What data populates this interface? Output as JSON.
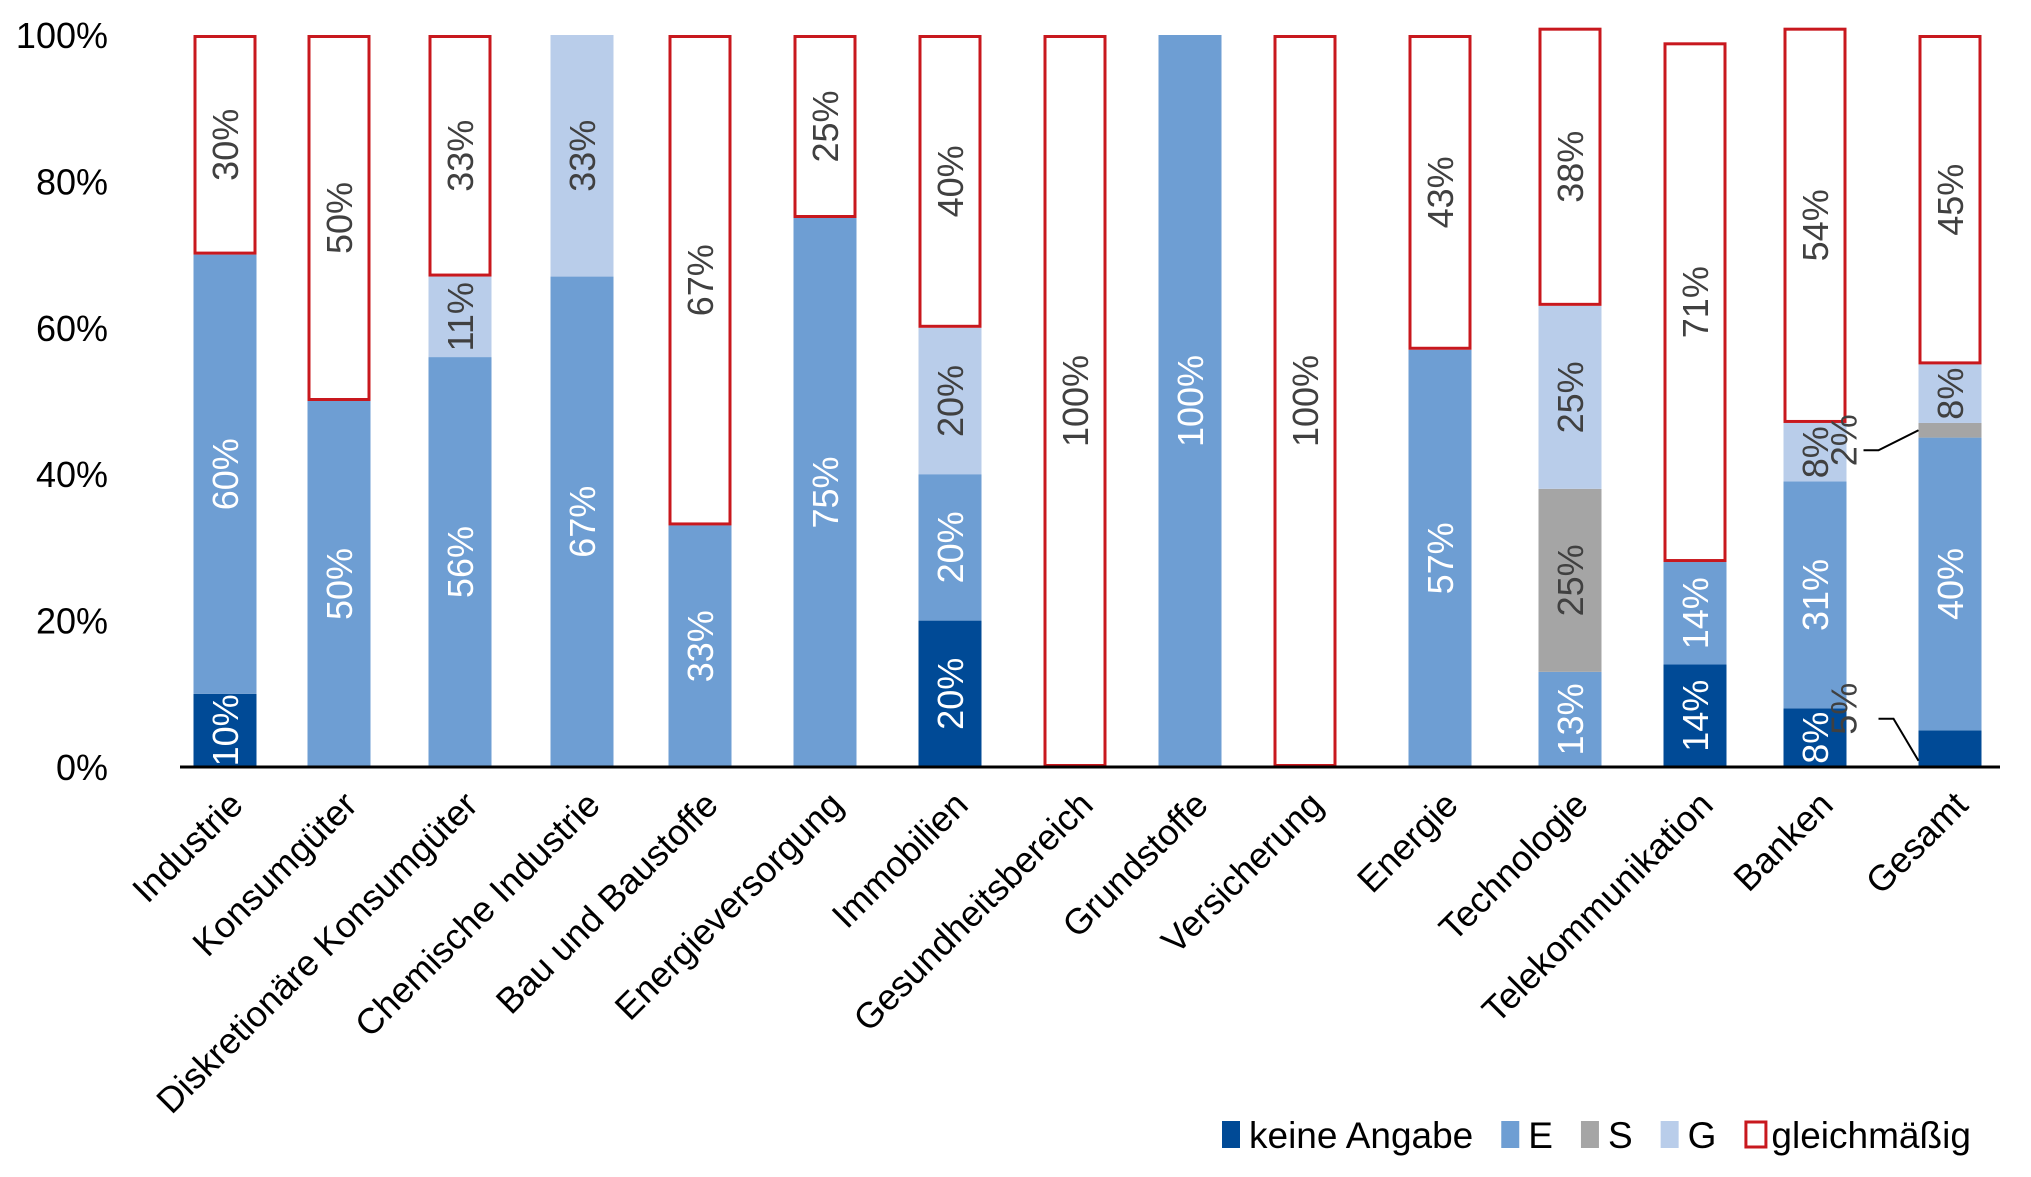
{
  "chart_data": {
    "type": "bar",
    "stacked": true,
    "title": "",
    "xlabel": "",
    "ylabel": "",
    "ylim": [
      0,
      100
    ],
    "yticks": [
      "0%",
      "20%",
      "40%",
      "60%",
      "80%",
      "100%"
    ],
    "grid": false,
    "legend_position": "bottom-right",
    "categories": [
      "Industrie",
      "Konsumgüter",
      "Diskretionäre Konsumgüter",
      "Chemische Industrie",
      "Bau und Baustoffe",
      "Energieversorgung",
      "Immobilien",
      "Gesundheitsbereich",
      "Grundstoffe",
      "Versicherung",
      "Energie",
      "Technologie",
      "Telekommunikation",
      "Banken",
      "Gesamt"
    ],
    "series": [
      {
        "name": "keine Angabe",
        "color": "#004a96",
        "label_color": "#ffffff",
        "style": "filled",
        "values": [
          10,
          0,
          0,
          0,
          0,
          0,
          20,
          0,
          0,
          0,
          0,
          0,
          14,
          8,
          5
        ]
      },
      {
        "name": "E",
        "color": "#6e9ed3",
        "label_color": "#ffffff",
        "style": "filled",
        "values": [
          60,
          50,
          56,
          67,
          33,
          75,
          20,
          0,
          100,
          0,
          57,
          13,
          14,
          31,
          40
        ]
      },
      {
        "name": "S",
        "color": "#a5a5a5",
        "label_color": "#404040",
        "style": "filled",
        "values": [
          0,
          0,
          0,
          0,
          0,
          0,
          0,
          0,
          0,
          0,
          0,
          25,
          0,
          0,
          2
        ]
      },
      {
        "name": "G",
        "color": "#b9cdea",
        "label_color": "#404040",
        "style": "filled",
        "values": [
          0,
          0,
          11,
          33,
          0,
          0,
          20,
          0,
          0,
          0,
          0,
          25,
          0,
          8,
          8
        ]
      },
      {
        "name": "gleichmäßig",
        "color": "#c8181e",
        "label_color": "#404040",
        "style": "outlined",
        "values": [
          30,
          50,
          33,
          0,
          67,
          25,
          40,
          100,
          0,
          100,
          43,
          38,
          71,
          54,
          45
        ]
      }
    ],
    "external_labels": [
      {
        "category": "Gesamt",
        "series": "keine Angabe",
        "text": "5%"
      },
      {
        "category": "Gesamt",
        "series": "S",
        "text": "2%"
      }
    ]
  }
}
